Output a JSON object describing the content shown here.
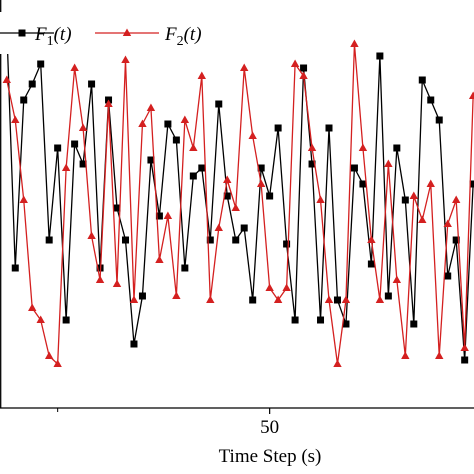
{
  "chart_data": {
    "type": "line",
    "xlabel": "Time Step (s)",
    "x": [
      19,
      20,
      21,
      22,
      23,
      24,
      25,
      26,
      27,
      28,
      29,
      30,
      31,
      32,
      33,
      34,
      35,
      36,
      37,
      38,
      39,
      40,
      41,
      42,
      43,
      44,
      45,
      46,
      47,
      48,
      49,
      50,
      51,
      52,
      53,
      54,
      55,
      56,
      57,
      58,
      59,
      60,
      61,
      62,
      63,
      64,
      65,
      66,
      67,
      68,
      69,
      70,
      71,
      72,
      73,
      74
    ],
    "series": [
      {
        "name": "F1(t)",
        "color": "#000000",
        "marker": "square",
        "values": [
          0.95,
          0.35,
          0.77,
          0.81,
          0.86,
          0.42,
          0.65,
          0.22,
          0.66,
          0.61,
          0.81,
          0.35,
          0.77,
          0.5,
          0.42,
          0.16,
          0.28,
          0.62,
          0.48,
          0.71,
          0.67,
          0.35,
          0.58,
          0.6,
          0.42,
          0.76,
          0.53,
          0.42,
          0.45,
          0.27,
          0.6,
          0.53,
          0.7,
          0.41,
          0.22,
          0.85,
          0.61,
          0.22,
          0.7,
          0.27,
          0.21,
          0.6,
          0.56,
          0.36,
          0.88,
          0.28,
          0.65,
          0.52,
          0.21,
          0.82,
          0.77,
          0.72,
          0.33,
          0.42,
          0.12,
          0.56
        ]
      },
      {
        "name": "F2(t)",
        "color": "#d42020",
        "marker": "triangle",
        "values": [
          0.82,
          0.72,
          0.52,
          0.25,
          0.22,
          0.13,
          0.11,
          0.6,
          0.85,
          0.7,
          0.43,
          0.32,
          0.76,
          0.31,
          0.87,
          0.27,
          0.71,
          0.75,
          0.37,
          0.48,
          0.28,
          0.72,
          0.65,
          0.83,
          0.27,
          0.45,
          0.57,
          0.5,
          0.85,
          0.68,
          0.56,
          0.3,
          0.27,
          0.3,
          0.86,
          0.83,
          0.65,
          0.52,
          0.27,
          0.11,
          0.27,
          0.91,
          0.65,
          0.42,
          0.27,
          0.61,
          0.32,
          0.13,
          0.53,
          0.47,
          0.56,
          0.13,
          0.46,
          0.52,
          0.15,
          0.78
        ]
      }
    ],
    "xlim": [
      18.2,
      74.1
    ],
    "xticks": [
      50
    ],
    "xminorticks": [
      25
    ],
    "ylim": [
      0,
      1.02
    ],
    "legend": "top-left"
  }
}
